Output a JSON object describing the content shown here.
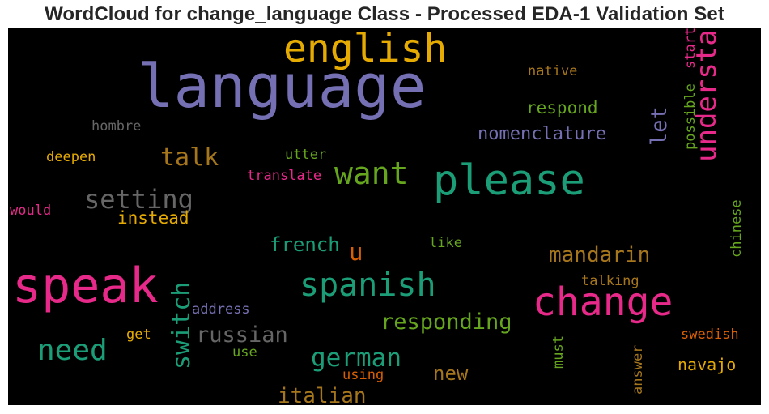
{
  "chart_data": {
    "type": "wordcloud",
    "title": "WordCloud for change_language Class - Processed EDA-1 Validation Set",
    "words": [
      {
        "text": "language",
        "color": "#7570b3"
      },
      {
        "text": "speak",
        "color": "#e7298a"
      },
      {
        "text": "please",
        "color": "#1b9e77"
      },
      {
        "text": "change",
        "color": "#e7298a"
      },
      {
        "text": "english",
        "color": "#e6ab02"
      },
      {
        "text": "spanish",
        "color": "#1b9e77"
      },
      {
        "text": "want",
        "color": "#66a61e"
      },
      {
        "text": "understand",
        "color": "#e7298a"
      },
      {
        "text": "setting",
        "color": "#666666"
      },
      {
        "text": "need",
        "color": "#1b9e77"
      },
      {
        "text": "switch",
        "color": "#1b9e77"
      },
      {
        "text": "talk",
        "color": "#a6761d"
      },
      {
        "text": "german",
        "color": "#1b9e77"
      },
      {
        "text": "responding",
        "color": "#66a61e"
      },
      {
        "text": "russian",
        "color": "#666666"
      },
      {
        "text": "mandarin",
        "color": "#a6761d"
      },
      {
        "text": "italian",
        "color": "#a6761d"
      },
      {
        "text": "french",
        "color": "#1b9e77"
      },
      {
        "text": "nomenclature",
        "color": "#7570b3"
      },
      {
        "text": "respond",
        "color": "#66a61e"
      },
      {
        "text": "let",
        "color": "#7570b3"
      },
      {
        "text": "instead",
        "color": "#e6ab02"
      },
      {
        "text": "new",
        "color": "#a6761d"
      },
      {
        "text": "u",
        "color": "#d95f02"
      },
      {
        "text": "navajo",
        "color": "#e6ab02"
      },
      {
        "text": "possible",
        "color": "#66a61e"
      },
      {
        "text": "start",
        "color": "#e7298a"
      },
      {
        "text": "native",
        "color": "#a6761d"
      },
      {
        "text": "hombre",
        "color": "#666666"
      },
      {
        "text": "deepen",
        "color": "#e6ab02"
      },
      {
        "text": "utter",
        "color": "#66a61e"
      },
      {
        "text": "translate",
        "color": "#e7298a"
      },
      {
        "text": "would",
        "color": "#e7298a"
      },
      {
        "text": "like",
        "color": "#66a61e"
      },
      {
        "text": "chinese",
        "color": "#66a61e"
      },
      {
        "text": "talking",
        "color": "#a6761d"
      },
      {
        "text": "address",
        "color": "#7570b3"
      },
      {
        "text": "get",
        "color": "#e6ab02"
      },
      {
        "text": "use",
        "color": "#66a61e"
      },
      {
        "text": "must",
        "color": "#66a61e"
      },
      {
        "text": "using",
        "color": "#d95f02"
      },
      {
        "text": "answer",
        "color": "#a6761d"
      },
      {
        "text": "swedish",
        "color": "#d95f02"
      }
    ]
  }
}
